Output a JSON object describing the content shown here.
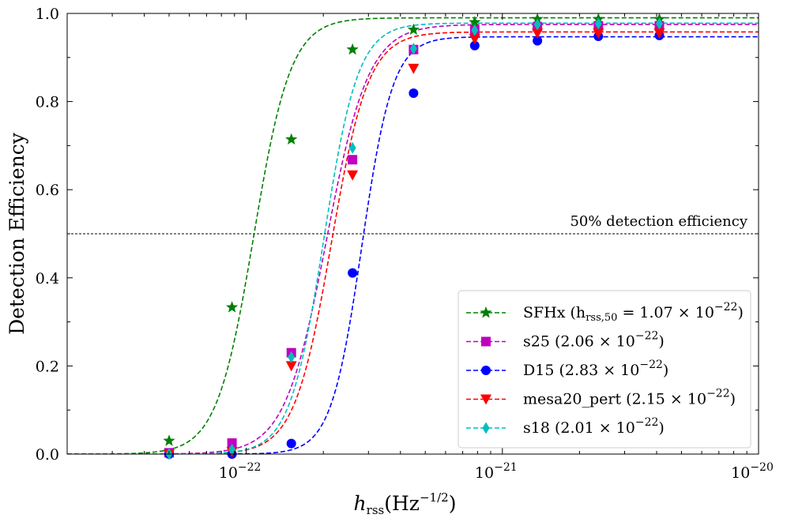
{
  "chart_data": {
    "type": "line",
    "xscale": "log",
    "xlim": [
      2e-23,
      1e-20
    ],
    "ylim": [
      0.0,
      1.0
    ],
    "xlabel": {
      "main": "h",
      "sub": "rss",
      "unit": "(Hz",
      "unit_sup": "−1/2",
      "unit_close": ")"
    },
    "ylabel": "Detection Efficiency",
    "x_ticks": [
      {
        "value": 1e-22,
        "base": "10",
        "exp": "−22"
      },
      {
        "value": 1e-21,
        "base": "10",
        "exp": "−21"
      },
      {
        "value": 1e-20,
        "base": "10",
        "exp": "−20"
      }
    ],
    "y_ticks": [
      {
        "value": 0.0,
        "label": "0.0"
      },
      {
        "value": 0.2,
        "label": "0.2"
      },
      {
        "value": 0.4,
        "label": "0.4"
      },
      {
        "value": 0.6,
        "label": "0.6"
      },
      {
        "value": 0.8,
        "label": "0.8"
      },
      {
        "value": 1.0,
        "label": "1.0"
      }
    ],
    "threshold": {
      "y": 0.5,
      "label": "50% detection efficiency"
    },
    "x": [
      5e-23,
      8.8e-23,
      1.5e-22,
      2.6e-22,
      4.5e-22,
      7.8e-22,
      1.37e-21,
      2.37e-21,
      4.1e-21
    ],
    "series": [
      {
        "name": "SFHx",
        "legend_text": "SFHx (h",
        "legend_sub": "rss,50",
        "legend_mid": " = 1.07 × 10",
        "legend_sup": "−22",
        "legend_end": ")",
        "color": "#008000",
        "marker": "star",
        "h50": 1.07e-22,
        "plateau": 0.99,
        "k": 6.0,
        "values": [
          0.03,
          0.333,
          0.714,
          0.918,
          0.963,
          0.98,
          0.987,
          0.987,
          0.987
        ]
      },
      {
        "name": "s25",
        "legend_text": "s25 (2.06 × 10",
        "legend_sub": "",
        "legend_mid": "",
        "legend_sup": "−22",
        "legend_end": ")",
        "color": "#bf00bf",
        "marker": "square",
        "h50": 2.06e-22,
        "plateau": 0.975,
        "k": 5.3,
        "values": [
          0.003,
          0.025,
          0.23,
          0.668,
          0.918,
          0.962,
          0.97,
          0.972,
          0.972
        ]
      },
      {
        "name": "D15",
        "legend_text": "D15 (2.83 × 10",
        "legend_sub": "",
        "legend_mid": "",
        "legend_sup": "−22",
        "legend_end": ")",
        "color": "#0000ff",
        "marker": "circle",
        "h50": 2.83e-22,
        "plateau": 0.947,
        "k": 7.2,
        "values": [
          0.0,
          0.0,
          0.024,
          0.411,
          0.819,
          0.927,
          0.938,
          0.948,
          0.95
        ]
      },
      {
        "name": "mesa20_pert",
        "legend_text": "mesa20_pert (2.15 × 10",
        "legend_sub": "",
        "legend_mid": "",
        "legend_sup": "−22",
        "legend_end": ")",
        "color": "#ff0000",
        "marker": "triangle-down",
        "h50": 2.15e-22,
        "plateau": 0.958,
        "k": 6.0,
        "values": [
          0.0,
          0.005,
          0.2,
          0.633,
          0.875,
          0.942,
          0.955,
          0.955,
          0.955
        ]
      },
      {
        "name": "s18",
        "legend_text": "s18 (2.01 × 10",
        "legend_sub": "",
        "legend_mid": "",
        "legend_sup": "−22",
        "legend_end": ")",
        "color": "#00bfbf",
        "marker": "diamond",
        "h50": 2.01e-22,
        "plateau": 0.978,
        "k": 6.5,
        "values": [
          0.0,
          0.01,
          0.22,
          0.695,
          0.92,
          0.962,
          0.975,
          0.977,
          0.977
        ]
      }
    ],
    "legend_position": "lower-right",
    "grid": false
  }
}
